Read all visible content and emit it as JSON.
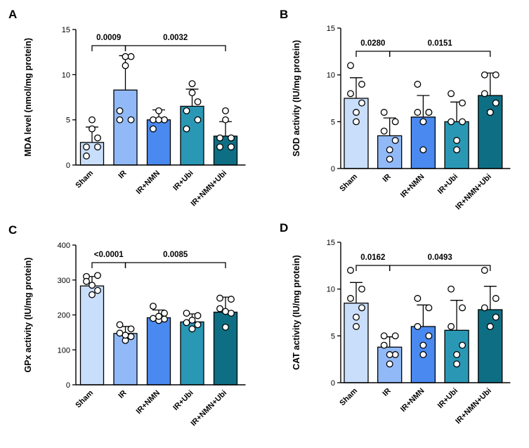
{
  "chart_data": [
    {
      "type": "bar",
      "panel_label": "A",
      "ylabel": "MDA level (nmol/mg protein)",
      "ylim": [
        0,
        15
      ],
      "yticks": [
        "0",
        "5",
        "10",
        "15"
      ],
      "categories": [
        "Sham",
        "IR",
        "IR+NMN",
        "IR+Ubi",
        "IR+NMN+Ubi"
      ],
      "colors": [
        "#c9defa",
        "#91b9f7",
        "#4a8af0",
        "#2a98b5",
        "#0e6f84"
      ],
      "values": [
        2.5,
        8.3,
        5.0,
        6.5,
        3.2
      ],
      "errors": [
        1.7,
        3.8,
        1.1,
        1.9,
        1.6
      ],
      "points": [
        [
          1,
          2,
          2,
          3,
          4,
          5
        ],
        [
          5,
          5,
          6,
          12,
          12,
          11
        ],
        [
          4,
          5,
          5,
          5,
          5,
          6
        ],
        [
          4,
          5,
          6,
          7,
          8,
          9
        ],
        [
          2,
          2,
          3,
          3,
          5,
          6
        ]
      ],
      "comparisons": [
        {
          "from": 0,
          "to": 1,
          "label": "0.0009"
        },
        {
          "from": 1,
          "to": 4,
          "label": "0.0032"
        }
      ]
    },
    {
      "type": "bar",
      "panel_label": "B",
      "ylabel": "SOD activity (IU/mg protein)",
      "ylim": [
        0,
        15
      ],
      "yticks": [
        "0",
        "5",
        "10",
        "15"
      ],
      "categories": [
        "Sham",
        "IR",
        "IR+NMN",
        "IR+Ubi",
        "IR+NMN+Ubi"
      ],
      "colors": [
        "#c9defa",
        "#91b9f7",
        "#4a8af0",
        "#2a98b5",
        "#0e6f84"
      ],
      "values": [
        7.5,
        3.5,
        5.5,
        5.0,
        7.8
      ],
      "errors": [
        2.2,
        1.9,
        2.3,
        2.1,
        2.4
      ],
      "points": [
        [
          11,
          9,
          8,
          7,
          6,
          5
        ],
        [
          6,
          5,
          4,
          3,
          2,
          1
        ],
        [
          9,
          6,
          6,
          6,
          5,
          2
        ],
        [
          8,
          7,
          5,
          5,
          3,
          2
        ],
        [
          10,
          10,
          8,
          7,
          6,
          6
        ]
      ],
      "comparisons": [
        {
          "from": 0,
          "to": 1,
          "label": "0.0280"
        },
        {
          "from": 1,
          "to": 4,
          "label": "0.0151"
        }
      ]
    },
    {
      "type": "bar",
      "panel_label": "C",
      "ylabel": "GPx activity (IU/mg protein)",
      "ylim": [
        0,
        400
      ],
      "yticks": [
        "0",
        "100",
        "200",
        "300",
        "400"
      ],
      "categories": [
        "Sham",
        "IR",
        "IR+NMN",
        "IR+Ubi",
        "IR+NMN+Ubi"
      ],
      "colors": [
        "#c9defa",
        "#91b9f7",
        "#4a8af0",
        "#2a98b5",
        "#0e6f84"
      ],
      "values": [
        283,
        147,
        192,
        180,
        208
      ],
      "errors": [
        27,
        20,
        22,
        23,
        43
      ],
      "points": [
        [
          310,
          313,
          296,
          270,
          258,
          285
        ],
        [
          172,
          160,
          148,
          138,
          127,
          142
        ],
        [
          225,
          205,
          190,
          188,
          184,
          196
        ],
        [
          205,
          198,
          178,
          172,
          160,
          185
        ],
        [
          248,
          245,
          218,
          205,
          165,
          210
        ]
      ],
      "comparisons": [
        {
          "from": 0,
          "to": 1,
          "label": "<0.0001"
        },
        {
          "from": 1,
          "to": 4,
          "label": "0.0085"
        }
      ]
    },
    {
      "type": "bar",
      "panel_label": "D",
      "ylabel": "CAT activity (IU/mg protein)",
      "ylim": [
        0,
        15
      ],
      "yticks": [
        "0",
        "5",
        "10",
        "15"
      ],
      "categories": [
        "Sham",
        "IR",
        "IR+NMN",
        "IR+Ubi",
        "IR+NMN+Ubi"
      ],
      "colors": [
        "#c9defa",
        "#91b9f7",
        "#4a8af0",
        "#2a98b5",
        "#0e6f84"
      ],
      "values": [
        8.5,
        3.8,
        6.0,
        5.6,
        7.8
      ],
      "errors": [
        2.2,
        1.1,
        2.3,
        3.2,
        2.5
      ],
      "points": [
        [
          12,
          10,
          9,
          8,
          7,
          6
        ],
        [
          5,
          5,
          4,
          3,
          3,
          2
        ],
        [
          9,
          8,
          6,
          5,
          4,
          3
        ],
        [
          10,
          8,
          6,
          4,
          3,
          2
        ],
        [
          12,
          9,
          8,
          7,
          6,
          6
        ]
      ],
      "comparisons": [
        {
          "from": 0,
          "to": 1,
          "label": "0.0162"
        },
        {
          "from": 1,
          "to": 4,
          "label": "0.0493"
        }
      ]
    }
  ]
}
